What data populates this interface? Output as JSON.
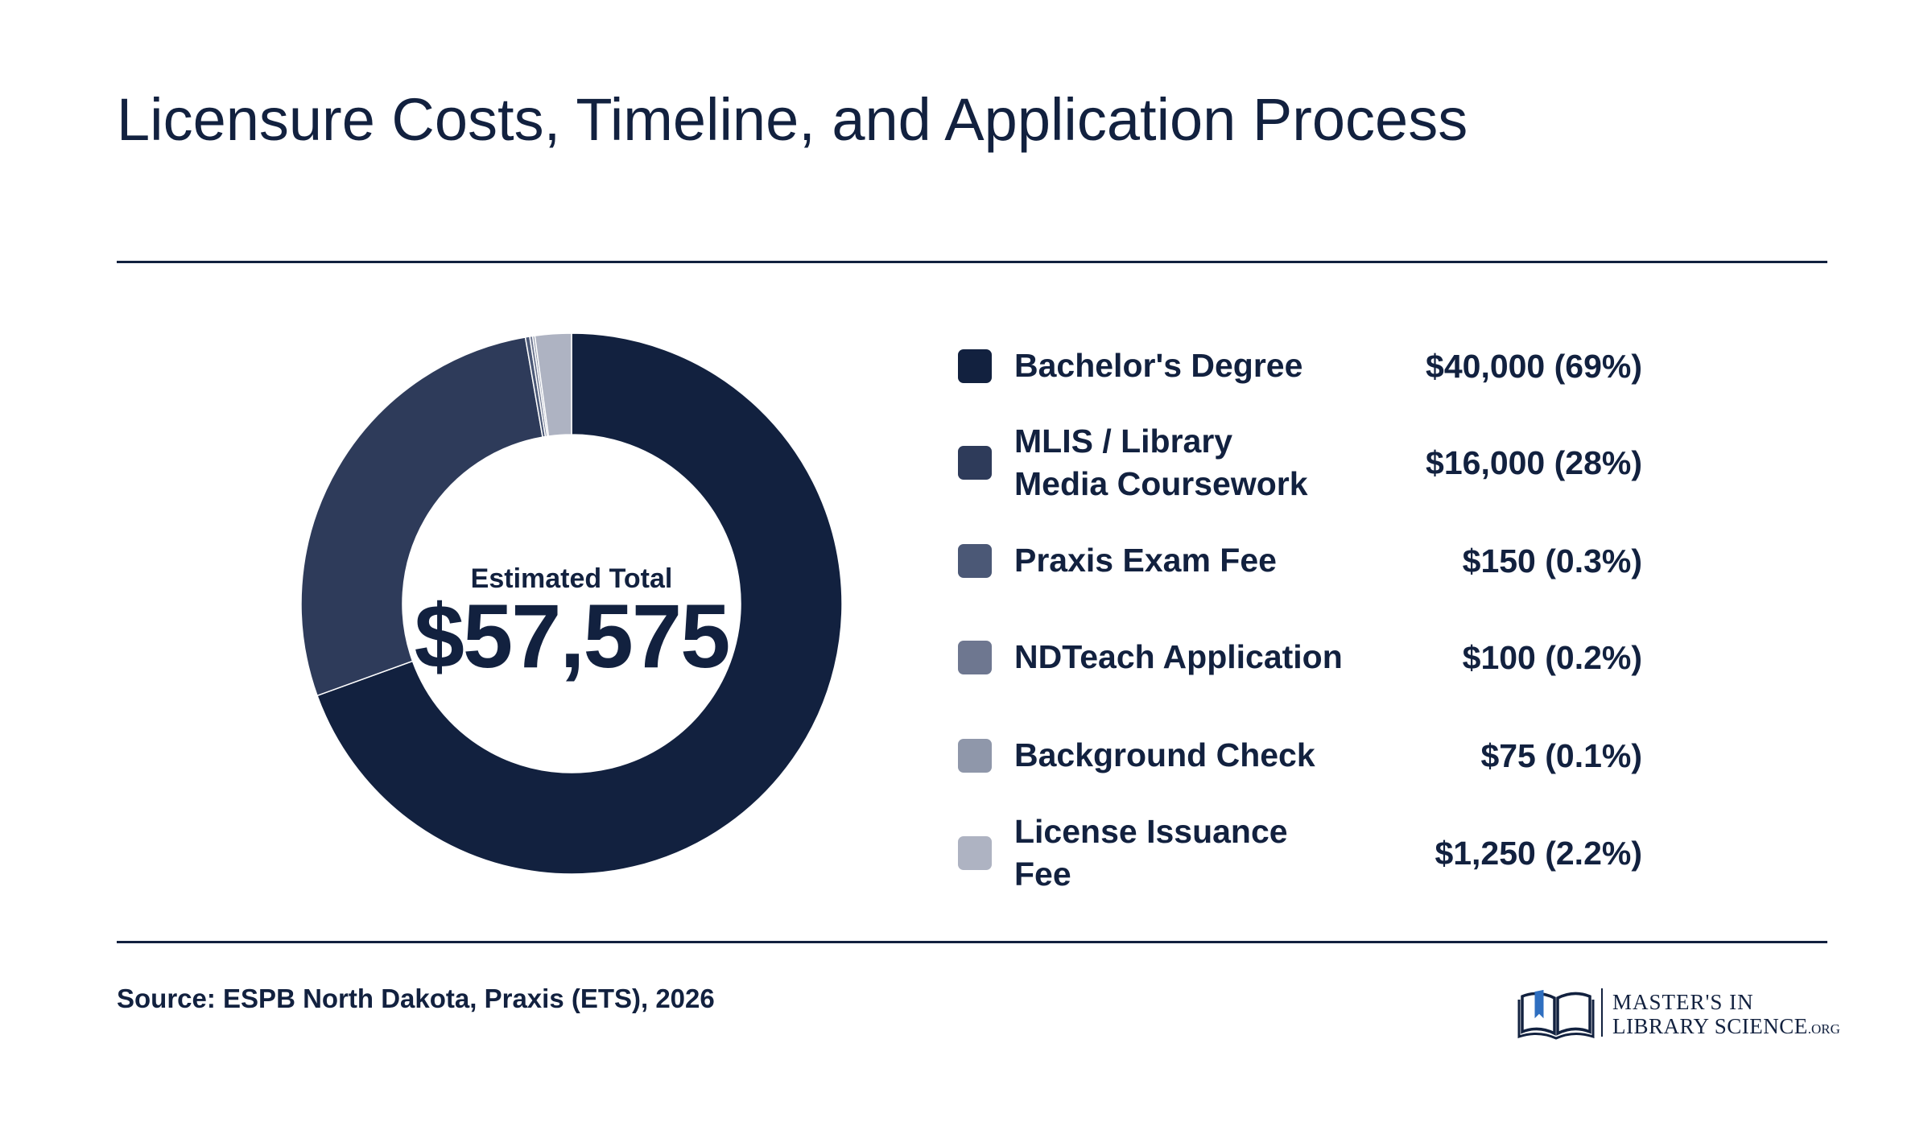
{
  "title": "Licensure Costs, Timeline, and Application Process",
  "center": {
    "label": "Estimated Total",
    "value": "$57,575"
  },
  "source": "Source: ESPB North Dakota, Praxis (ETS), 2026",
  "logo": {
    "line1": "MASTER'S IN",
    "line2": "LIBRARY SCIENCE",
    "suffix": ".ORG",
    "icon": "open-book-icon"
  },
  "colors": {
    "text": "#12213f",
    "rule": "#12213f"
  },
  "chart_data": {
    "type": "pie",
    "donut": true,
    "title": "Licensure Costs, Timeline, and Application Process",
    "total_label": "Estimated Total",
    "total_value": 57575,
    "legend_position": "right",
    "slices": [
      {
        "label": "Bachelor's Degree",
        "value": 40000,
        "value_label": "$40,000 (69%)",
        "color": "#12213f"
      },
      {
        "label": "MLIS / Library Media Coursework",
        "value": 16000,
        "value_label": "$16,000 (28%)",
        "color": "#2e3b5a"
      },
      {
        "label": "Praxis Exam Fee",
        "value": 150,
        "value_label": "$150 (0.3%)",
        "color": "#4b5876"
      },
      {
        "label": "NDTeach Application",
        "value": 100,
        "value_label": "$100 (0.2%)",
        "color": "#6e7790"
      },
      {
        "label": "Background Check",
        "value": 75,
        "value_label": "$75 (0.1%)",
        "color": "#8f97aa"
      },
      {
        "label": "License Issuance Fee",
        "value": 1250,
        "value_label": "$1,250 (2.2%)",
        "color": "#aeb3c2"
      }
    ]
  }
}
